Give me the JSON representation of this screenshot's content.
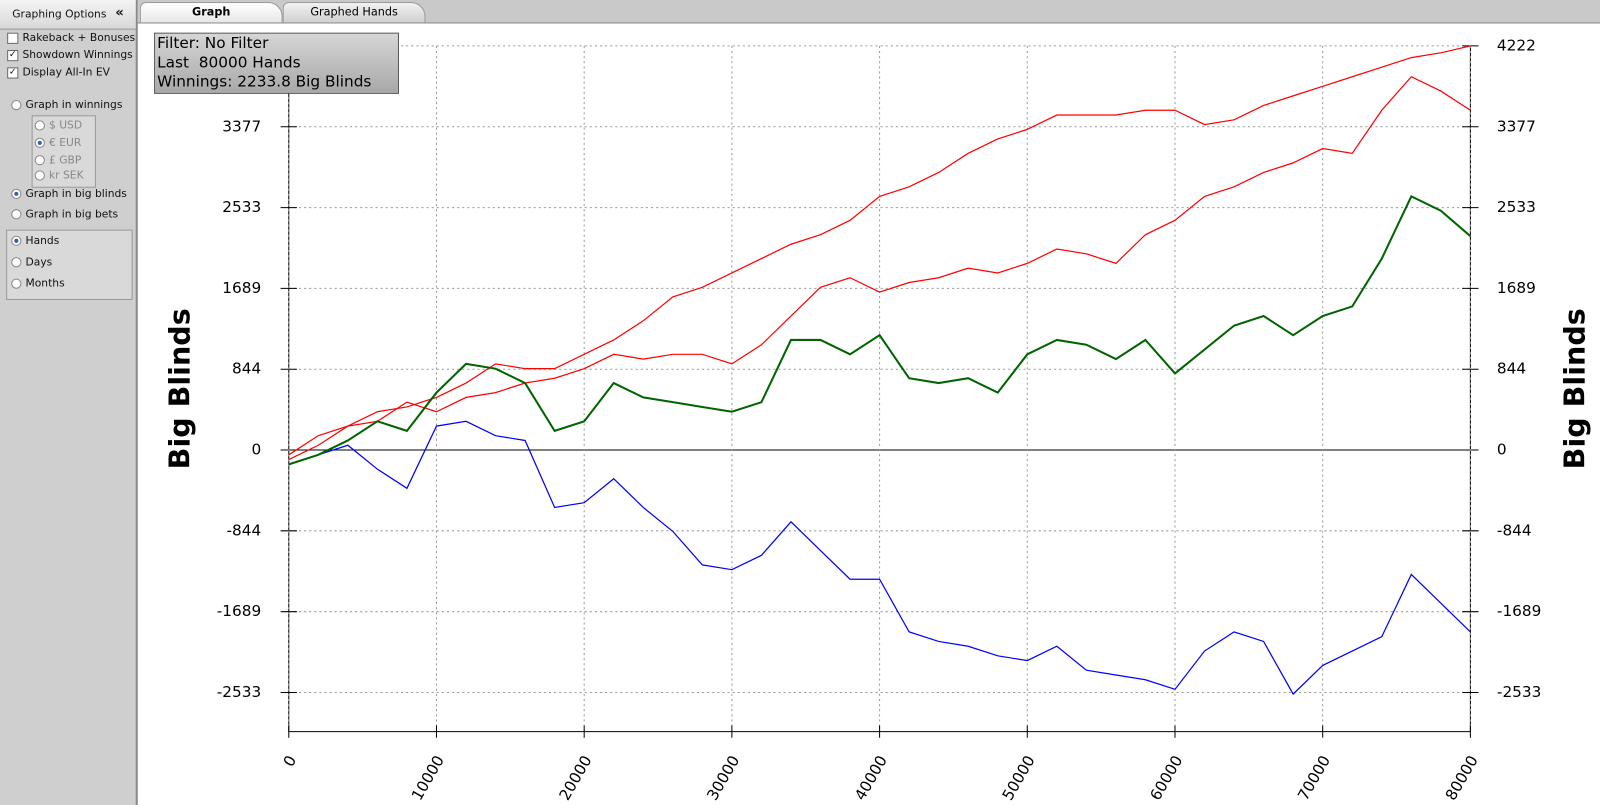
{
  "tabs": [
    {
      "label": "Graph",
      "active": true
    },
    {
      "label": "Graphed Hands",
      "active": false
    }
  ],
  "sidebar": {
    "title": "Graphing Options",
    "collapse": "«",
    "checkboxes": [
      {
        "label": "Rakeback + Bonuses",
        "checked": false
      },
      {
        "label": "Showdown Winnings",
        "checked": true
      },
      {
        "label": "Display All-In EV",
        "checked": true
      }
    ],
    "unit_radios": [
      {
        "label": "Graph in winnings",
        "selected": false
      },
      {
        "label": "Graph in big blinds",
        "selected": true
      },
      {
        "label": "Graph in big bets",
        "selected": false
      }
    ],
    "currencies": [
      {
        "label": "$ USD",
        "selected": false
      },
      {
        "label": "€ EUR",
        "selected": true
      },
      {
        "label": "£ GBP",
        "selected": false
      },
      {
        "label": "kr SEK",
        "selected": false
      }
    ],
    "period_radios": [
      {
        "label": "Hands",
        "selected": true
      },
      {
        "label": "Days",
        "selected": false
      },
      {
        "label": "Months",
        "selected": false
      }
    ]
  },
  "info_box": [
    "Filter: No Filter",
    "Last  80000 Hands",
    "Winnings: 2233.8 Big Blinds"
  ],
  "chart_data": {
    "type": "line",
    "y_label": "Big Blinds",
    "grid": true,
    "x": [
      0,
      2000,
      4000,
      6000,
      8000,
      10000,
      12000,
      14000,
      16000,
      18000,
      20000,
      22000,
      24000,
      26000,
      28000,
      30000,
      32000,
      34000,
      36000,
      38000,
      40000,
      42000,
      44000,
      46000,
      48000,
      50000,
      52000,
      54000,
      56000,
      58000,
      60000,
      62000,
      64000,
      66000,
      68000,
      70000,
      72000,
      74000,
      76000,
      78000,
      80000
    ],
    "xlim": [
      0,
      80000
    ],
    "xticks": [
      0,
      10000,
      20000,
      30000,
      40000,
      50000,
      60000,
      70000,
      80000
    ],
    "ylim": [
      -2942,
      4222
    ],
    "yticks": [
      -2533,
      -1689,
      -844,
      0,
      844,
      1689,
      2533,
      3377,
      4222
    ],
    "series": [
      {
        "color": "#ff0000",
        "values": [
          -50,
          150,
          250,
          400,
          450,
          550,
          700,
          900,
          850,
          850,
          1000,
          1150,
          1350,
          1600,
          1700,
          1850,
          2000,
          2150,
          2250,
          2400,
          2650,
          2750,
          2900,
          3100,
          3250,
          3350,
          3500,
          3500,
          3500,
          3550,
          3550,
          3400,
          3450,
          3600,
          3700,
          3800,
          3900,
          4000,
          4100,
          4150,
          4222
        ]
      },
      {
        "color": "#ff0000",
        "values": [
          -100,
          50,
          250,
          300,
          500,
          400,
          550,
          600,
          700,
          750,
          850,
          1000,
          950,
          1000,
          1000,
          900,
          1100,
          1400,
          1700,
          1800,
          1650,
          1750,
          1800,
          1900,
          1850,
          1950,
          2100,
          2050,
          1950,
          2250,
          2400,
          2650,
          2750,
          2900,
          3000,
          3150,
          3100,
          3550,
          3900,
          3750,
          3550
        ]
      },
      {
        "color": "#0000ff",
        "values": [
          -150,
          -50,
          50,
          -200,
          -400,
          250,
          300,
          150,
          100,
          -600,
          -550,
          -300,
          -600,
          -850,
          -1200,
          -1250,
          -1100,
          -750,
          -1050,
          -1350,
          -1350,
          -1900,
          -2000,
          -2050,
          -2150,
          -2200,
          -2050,
          -2300,
          -2350,
          -2400,
          -2500,
          -2100,
          -1900,
          -2000,
          -2550,
          -2250,
          -2100,
          -1950,
          -1300,
          -1600,
          -1900
        ]
      },
      {
        "color": "#006400",
        "values": [
          -150,
          -50,
          100,
          300,
          200,
          600,
          900,
          850,
          700,
          200,
          300,
          700,
          550,
          500,
          450,
          400,
          500,
          1150,
          1150,
          1000,
          1200,
          750,
          700,
          750,
          600,
          1000,
          1150,
          1100,
          950,
          1150,
          800,
          1050,
          1300,
          1400,
          1200,
          1400,
          1500,
          2000,
          2650,
          2500,
          2234
        ]
      }
    ]
  }
}
